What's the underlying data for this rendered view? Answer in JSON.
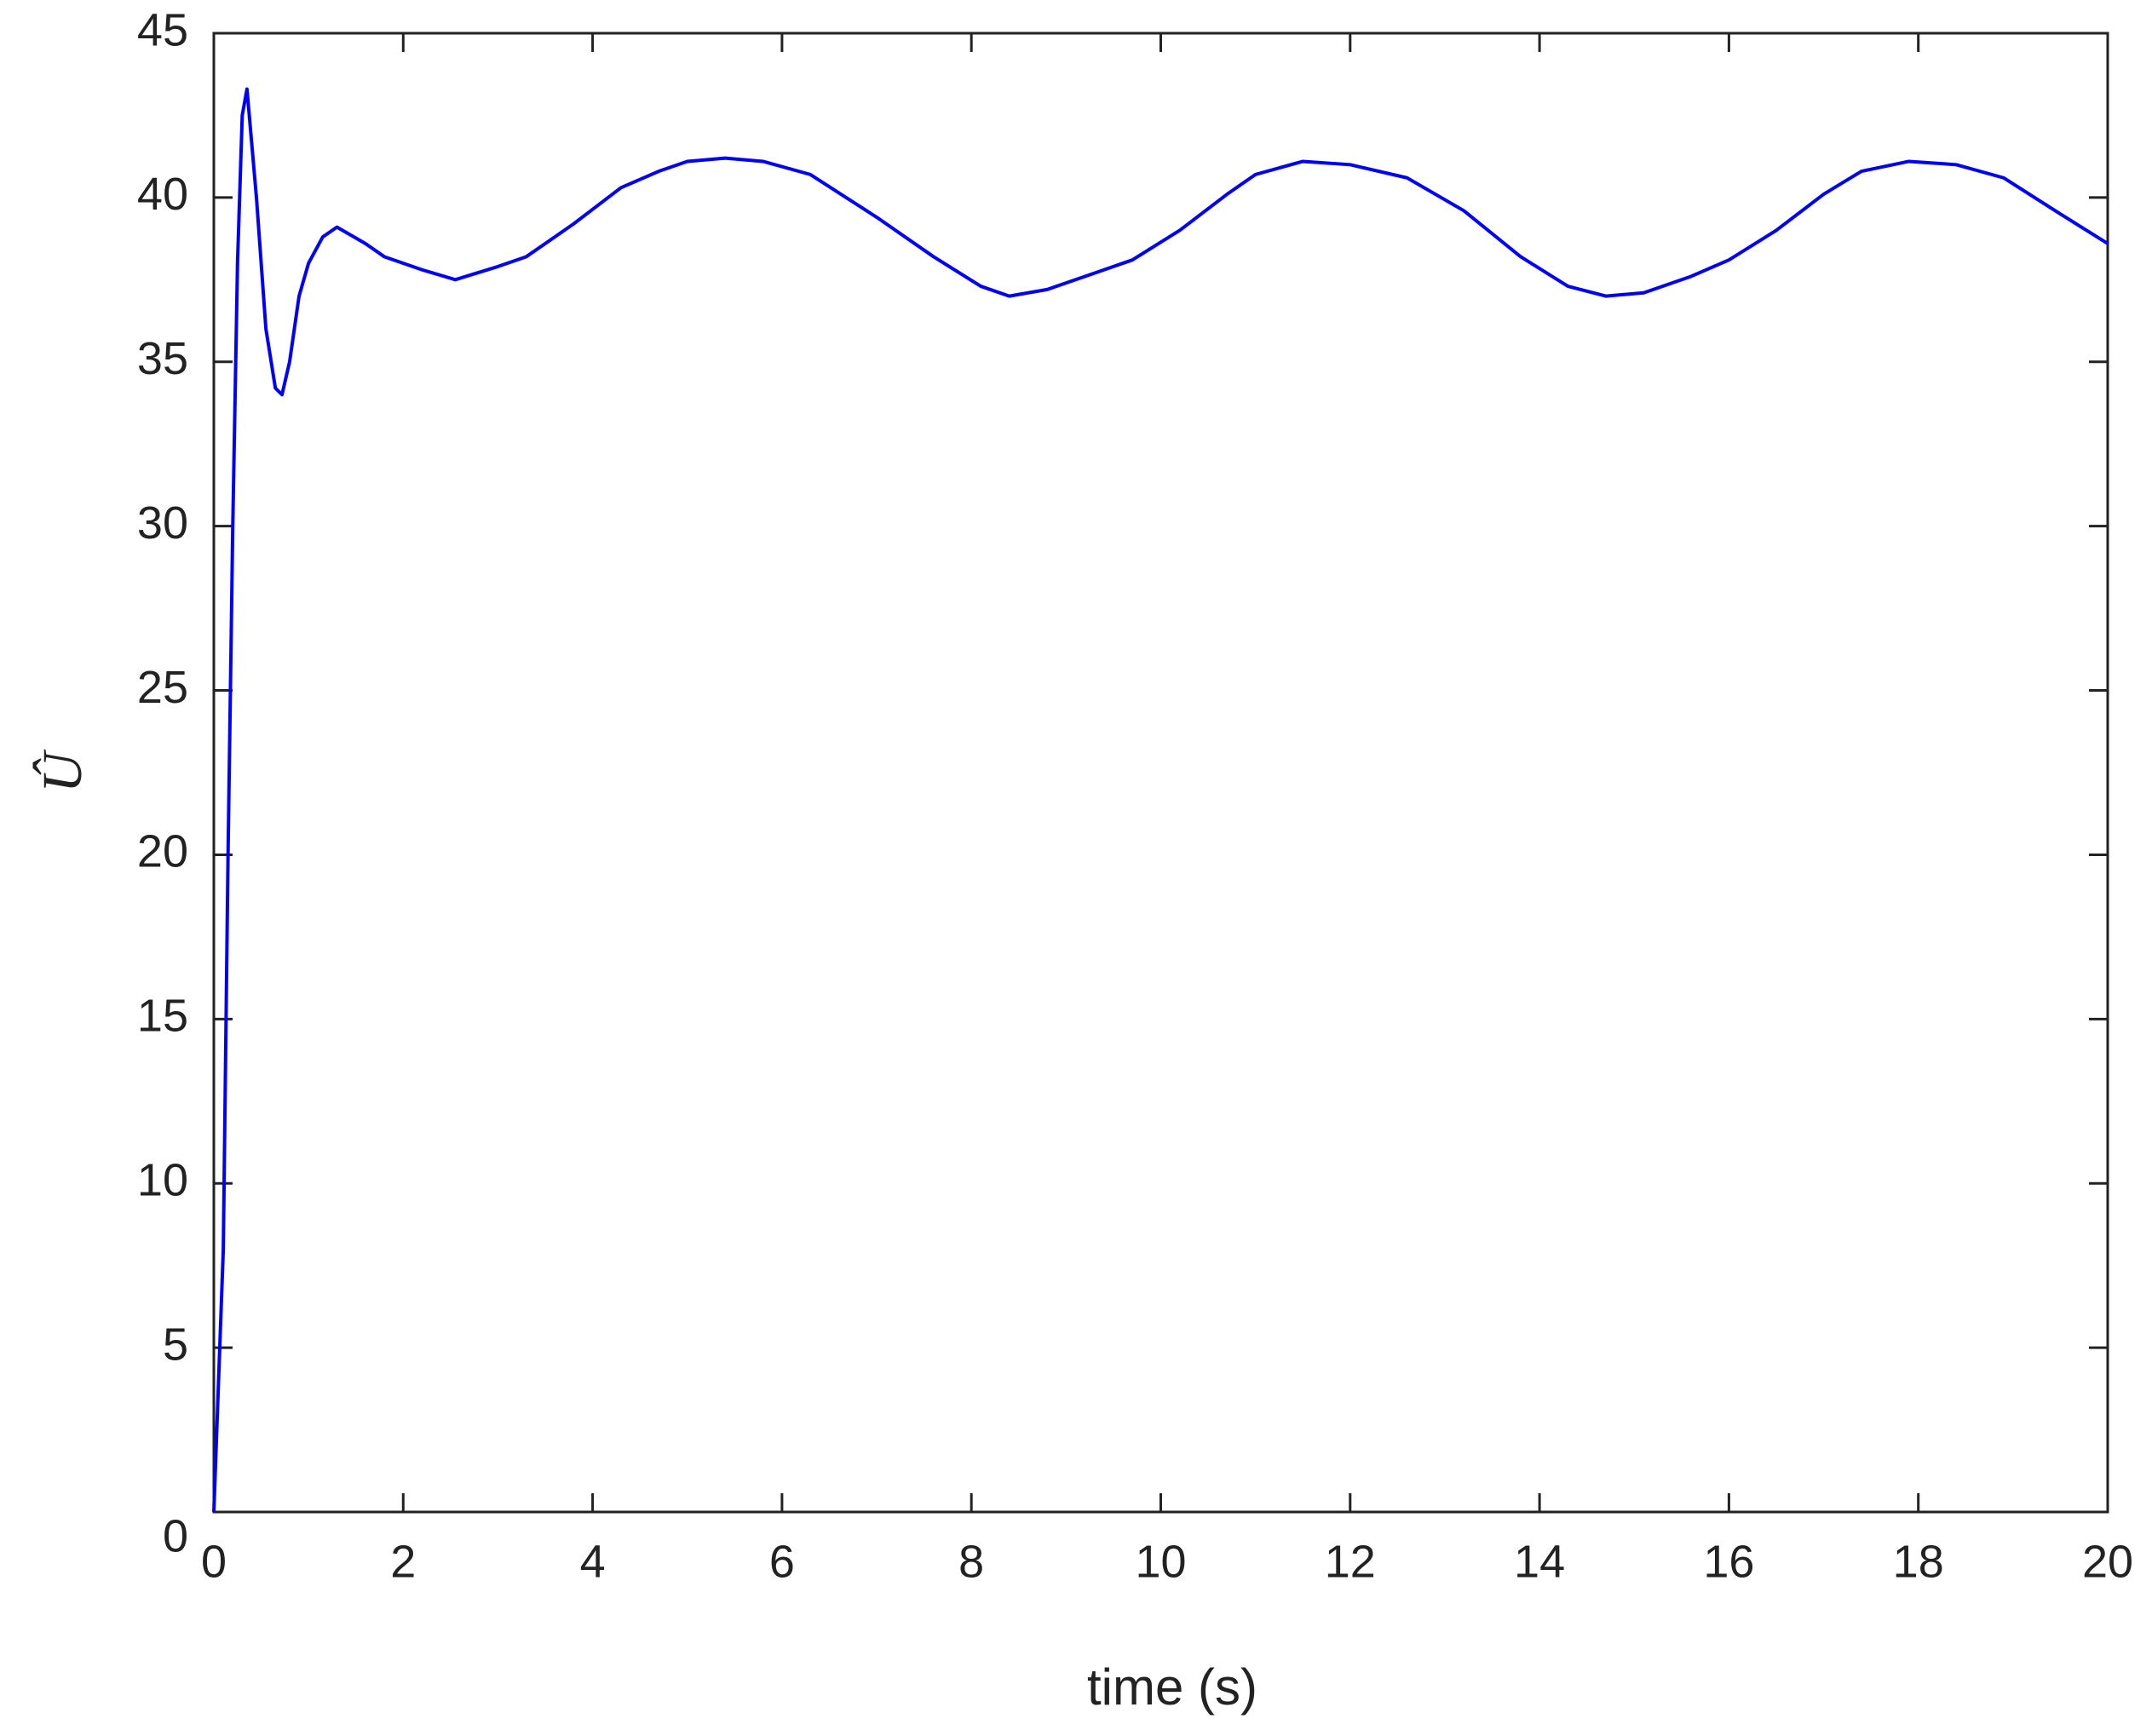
{
  "chart_data": {
    "type": "line",
    "x_label": "time (s)",
    "y_label": "Û",
    "x": [
      0,
      0.1,
      0.15,
      0.2,
      0.25,
      0.3,
      0.35,
      0.45,
      0.55,
      0.65,
      0.72,
      0.8,
      0.9,
      1.0,
      1.15,
      1.3,
      1.6,
      1.8,
      2.2,
      2.55,
      3.0,
      3.3,
      3.8,
      4.3,
      4.7,
      5.0,
      5.4,
      5.8,
      6.3,
      7.0,
      7.6,
      8.1,
      8.4,
      8.8,
      9.3,
      9.7,
      10.2,
      10.7,
      11.0,
      11.5,
      12.0,
      12.6,
      13.2,
      13.8,
      14.3,
      14.7,
      15.1,
      15.6,
      16.0,
      16.5,
      17.0,
      17.4,
      17.9,
      18.4,
      18.9,
      19.5,
      20
    ],
    "series": [
      {
        "color": "#0000ff",
        "values": [
          0,
          8,
          20,
          30,
          38,
          42.5,
          43.3,
          40,
          36,
          34.2,
          34,
          35,
          37,
          38,
          38.8,
          39.1,
          38.6,
          38.2,
          37.8,
          37.5,
          37.9,
          38.2,
          39.2,
          40.3,
          40.8,
          41.1,
          41.2,
          41.1,
          40.7,
          39.4,
          38.2,
          37.3,
          37.0,
          37.2,
          37.7,
          38.1,
          39.0,
          40.1,
          40.7,
          41.1,
          41.0,
          40.6,
          39.6,
          38.2,
          37.3,
          37.0,
          37.1,
          37.6,
          38.1,
          39.0,
          40.1,
          40.8,
          41.1,
          41.0,
          40.6,
          39.5,
          38.6
        ]
      }
    ],
    "xlim": [
      0,
      20
    ],
    "xticks": [
      0,
      2,
      4,
      6,
      8,
      10,
      12,
      14,
      16,
      18,
      20
    ],
    "ylim": [
      0,
      45
    ],
    "yticks": [
      0,
      5,
      10,
      15,
      20,
      25,
      30,
      35,
      40,
      45
    ],
    "grid": false
  }
}
